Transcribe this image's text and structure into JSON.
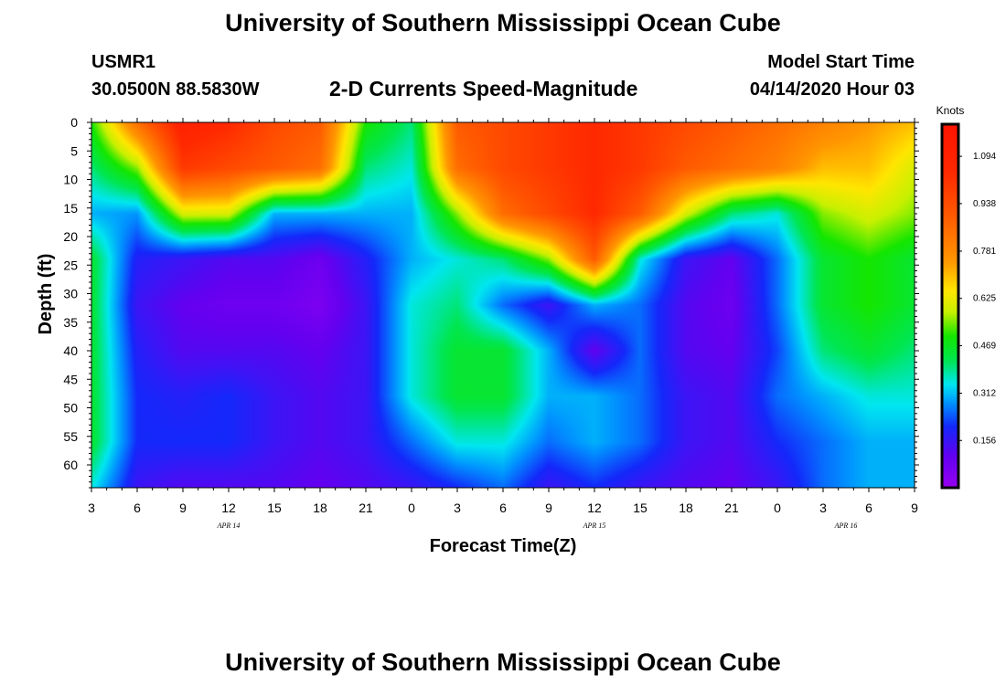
{
  "page": {
    "title_top": "University of Southern Mississippi Ocean Cube",
    "title_bottom": "University of Southern Mississippi Ocean Cube",
    "station_id": "USMR1",
    "station_coords": "30.0500N 88.5830W",
    "plot_title": "2-D Currents Speed-Magnitude",
    "model_label": "Model Start Time",
    "model_time": "04/14/2020 Hour 03"
  },
  "chart_data": {
    "type": "heatmap",
    "title": "2-D Currents Speed-Magnitude",
    "xlabel": "Forecast Time(Z)",
    "ylabel": "Depth (ft)",
    "x_tick_labels": [
      "3",
      "6",
      "9",
      "12",
      "15",
      "18",
      "21",
      "0",
      "3",
      "6",
      "9",
      "12",
      "15",
      "18",
      "21",
      "0",
      "3",
      "6",
      "9"
    ],
    "x_range_hours": [
      0,
      54
    ],
    "x_date_labels": [
      {
        "label": "APR 14",
        "hour": 9
      },
      {
        "label": "APR 15",
        "hour": 33
      },
      {
        "label": "APR 16",
        "hour": 49.5
      }
    ],
    "y_tick_labels": [
      "0",
      "5",
      "10",
      "15",
      "20",
      "25",
      "30",
      "35",
      "40",
      "45",
      "50",
      "55",
      "60"
    ],
    "ylim": [
      0,
      64
    ],
    "y_inverted": true,
    "colorbar": {
      "label": "Knots",
      "ticks": [
        "1.094",
        "0.938",
        "0.781",
        "0.625",
        "0.469",
        "0.312",
        "0.156"
      ],
      "tick_values": [
        1.094,
        0.938,
        0.781,
        0.625,
        0.469,
        0.312,
        0.156
      ],
      "range": [
        0.0,
        1.2
      ]
    },
    "grid_hours": [
      0,
      3,
      6,
      9,
      12,
      15,
      18,
      21,
      24,
      27,
      30,
      33,
      36,
      39,
      42,
      45,
      48,
      51,
      54
    ],
    "grid_depths_ft": [
      0,
      8,
      16,
      24,
      32,
      40,
      48,
      56,
      64
    ],
    "speed_knots": [
      [
        0.5,
        0.85,
        1.1,
        1.05,
        0.95,
        0.9,
        0.5,
        0.4,
        0.9,
        0.95,
        1.0,
        1.05,
        1.0,
        0.95,
        0.9,
        0.85,
        0.8,
        0.75,
        0.7
      ],
      [
        0.4,
        0.55,
        1.0,
        0.95,
        0.9,
        0.85,
        0.4,
        0.35,
        0.85,
        0.95,
        1.0,
        1.05,
        1.0,
        0.9,
        0.85,
        0.8,
        0.7,
        0.7,
        0.6
      ],
      [
        0.3,
        0.28,
        0.6,
        0.6,
        0.3,
        0.3,
        0.3,
        0.3,
        0.55,
        0.85,
        0.95,
        1.05,
        0.9,
        0.6,
        0.4,
        0.35,
        0.55,
        0.6,
        0.55
      ],
      [
        0.45,
        0.18,
        0.15,
        0.12,
        0.12,
        0.08,
        0.18,
        0.3,
        0.35,
        0.4,
        0.55,
        0.9,
        0.35,
        0.15,
        0.1,
        0.25,
        0.45,
        0.5,
        0.45
      ],
      [
        0.45,
        0.15,
        0.1,
        0.08,
        0.08,
        0.05,
        0.15,
        0.35,
        0.4,
        0.25,
        0.15,
        0.3,
        0.25,
        0.12,
        0.08,
        0.25,
        0.45,
        0.5,
        0.45
      ],
      [
        0.45,
        0.18,
        0.12,
        0.12,
        0.12,
        0.1,
        0.15,
        0.35,
        0.45,
        0.45,
        0.3,
        0.1,
        0.25,
        0.12,
        0.1,
        0.22,
        0.4,
        0.45,
        0.4
      ],
      [
        0.45,
        0.2,
        0.18,
        0.2,
        0.15,
        0.12,
        0.15,
        0.35,
        0.45,
        0.45,
        0.3,
        0.3,
        0.25,
        0.15,
        0.12,
        0.25,
        0.3,
        0.35,
        0.35
      ],
      [
        0.45,
        0.2,
        0.2,
        0.2,
        0.15,
        0.12,
        0.15,
        0.25,
        0.35,
        0.35,
        0.25,
        0.3,
        0.25,
        0.15,
        0.12,
        0.2,
        0.25,
        0.3,
        0.3
      ],
      [
        0.35,
        0.15,
        0.12,
        0.12,
        0.12,
        0.1,
        0.12,
        0.15,
        0.2,
        0.25,
        0.15,
        0.2,
        0.15,
        0.12,
        0.1,
        0.15,
        0.25,
        0.3,
        0.3
      ]
    ]
  }
}
